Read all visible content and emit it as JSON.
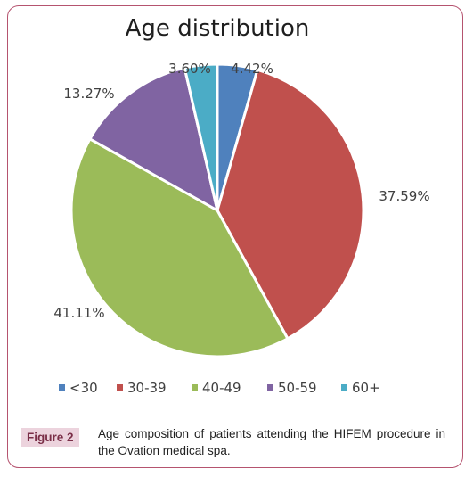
{
  "chart_data": {
    "type": "pie",
    "title": "Age distribution",
    "categories": [
      "<30",
      "30-39",
      "40-49",
      "50-59",
      "60+"
    ],
    "values": [
      4.42,
      37.59,
      41.11,
      13.27,
      3.6
    ],
    "value_labels": [
      "4.42%",
      "37.59%",
      "41.11%",
      "13.27%",
      "3.60%"
    ],
    "colors": [
      "#4f81bd",
      "#c0504d",
      "#9bbb59",
      "#8064a2",
      "#4bacc6"
    ],
    "start_angle_deg": 0,
    "direction": "clockwise",
    "legend_position": "bottom"
  },
  "caption": {
    "label": "Figure 2",
    "text": "Age composition of patients attending the HIFEM procedure in the Ovation medical spa."
  }
}
